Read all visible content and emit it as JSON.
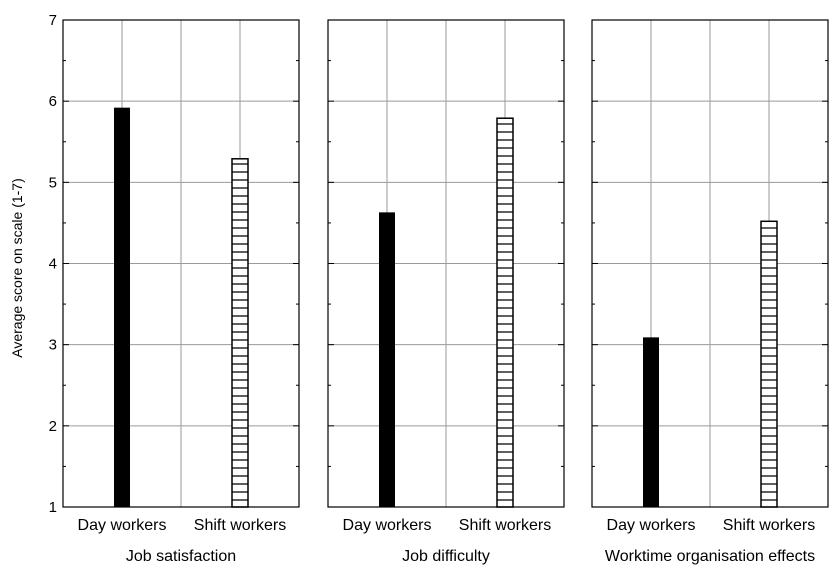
{
  "chart_data": {
    "type": "bar",
    "ylabel": "Average score on scale (1-7)",
    "xlabel": "",
    "ylim": [
      1,
      7
    ],
    "yticks": [
      1,
      2,
      3,
      4,
      5,
      6,
      7
    ],
    "grid": true,
    "categories": [
      "Day workers",
      "Shift workers"
    ],
    "fill_colors": {
      "Day workers": "#000000",
      "Shift workers": "#ffffff"
    },
    "hatch": {
      "Day workers": "solid",
      "Shift workers": "horizontal-lines"
    },
    "panels": [
      {
        "title": "Job satisfaction",
        "values": [
          5.92,
          5.29
        ]
      },
      {
        "title": "Job difficulty",
        "values": [
          4.63,
          5.79
        ]
      },
      {
        "title": "Worktime organisation effects",
        "values": [
          3.09,
          4.52
        ]
      }
    ]
  }
}
